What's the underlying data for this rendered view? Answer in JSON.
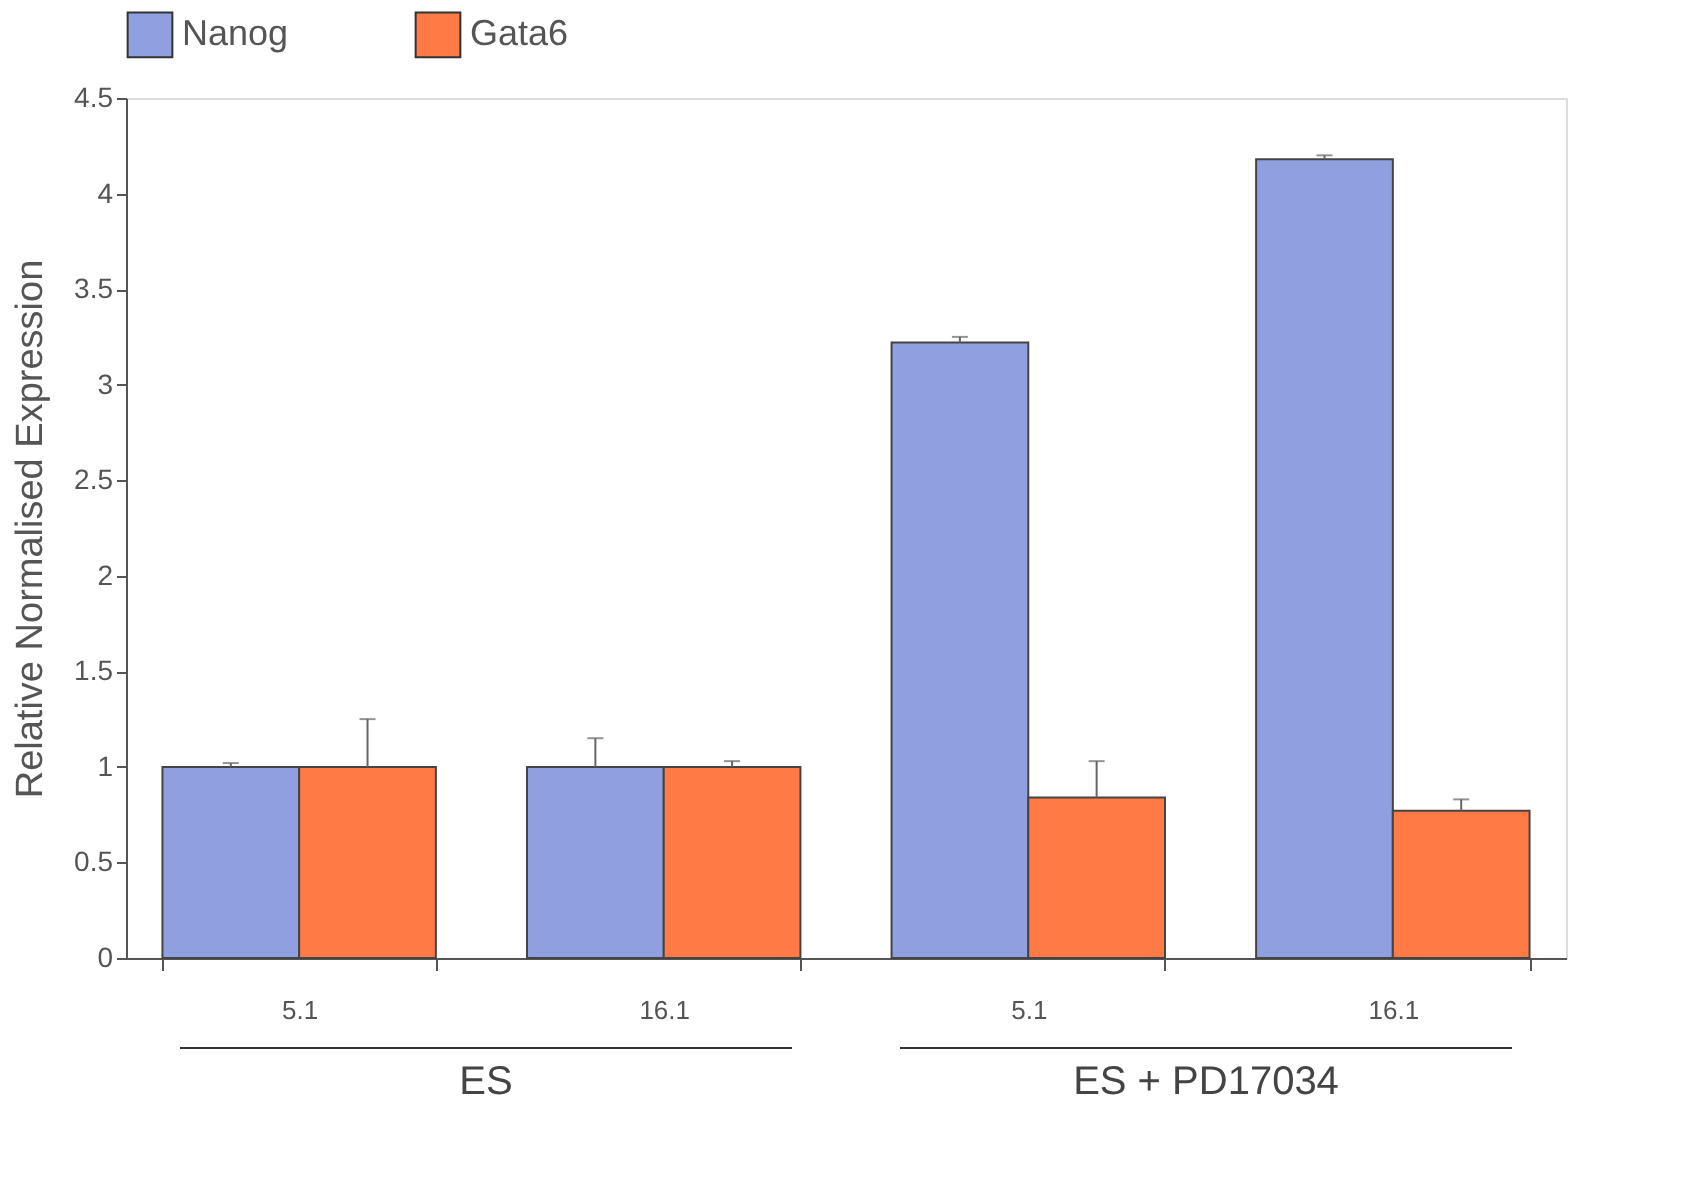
{
  "chart_data": {
    "type": "bar",
    "ylabel": "Relative Normalised Expression",
    "categories": [
      "5.1",
      "16.1",
      "5.1",
      "16.1"
    ],
    "series": [
      {
        "name": "Nanog",
        "color": "#8fa0e0",
        "values": [
          1.0,
          1.0,
          3.22,
          4.18
        ],
        "errors": [
          [
            1.0,
            1.02
          ],
          [
            1.0,
            1.15
          ],
          [
            3.22,
            3.25
          ],
          [
            4.18,
            4.2
          ]
        ]
      },
      {
        "name": "Gata6",
        "color": "#ff7a45",
        "values": [
          1.0,
          1.0,
          0.84,
          0.77
        ],
        "errors": [
          [
            1.0,
            1.25
          ],
          [
            1.0,
            1.03
          ],
          [
            0.84,
            1.03
          ],
          [
            0.77,
            0.83
          ]
        ]
      }
    ],
    "ylim": [
      0,
      4.5
    ],
    "yticks": [
      0,
      0.5,
      1,
      1.5,
      2,
      2.5,
      3,
      3.5,
      4,
      4.5
    ],
    "grid": false,
    "legend": "top",
    "annotations": [
      "ES",
      "ES + PD17034"
    ]
  }
}
